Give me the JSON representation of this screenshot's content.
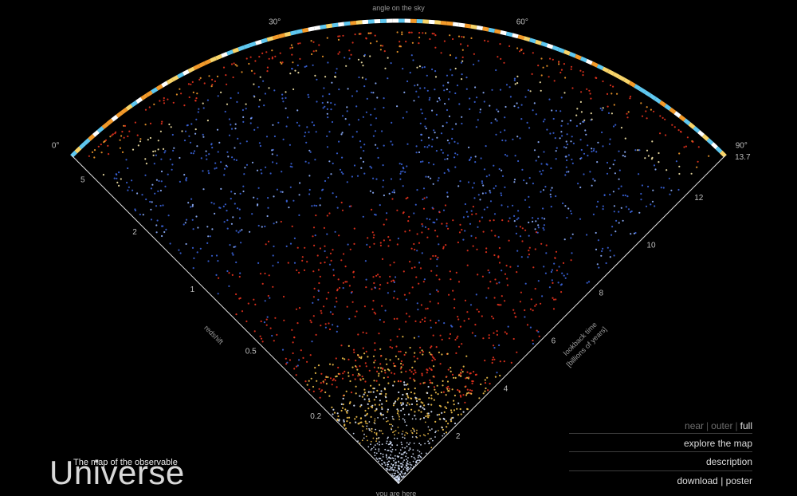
{
  "chart_data": {
    "type": "scatter",
    "title": "angle on the sky",
    "angle_ticks": [
      {
        "label": "0°",
        "value": 0
      },
      {
        "label": "30°",
        "value": 30
      },
      {
        "label": "60°",
        "value": 60
      },
      {
        "label": "90°",
        "value": 90
      }
    ],
    "redshift_axis": {
      "label": "redshift",
      "ticks": [
        {
          "label": "5",
          "value": 5
        },
        {
          "label": "2",
          "value": 2
        },
        {
          "label": "1",
          "value": 1
        },
        {
          "label": "0.5",
          "value": 0.5
        },
        {
          "label": "0.2",
          "value": 0.2
        }
      ]
    },
    "lookback_axis": {
      "label": "lookback time",
      "sublabel": "[billions of years]",
      "range": [
        0,
        13.7
      ],
      "ticks": [
        {
          "label": "2",
          "value": 2
        },
        {
          "label": "4",
          "value": 4
        },
        {
          "label": "6",
          "value": 6
        },
        {
          "label": "8",
          "value": 8
        },
        {
          "label": "10",
          "value": 10
        },
        {
          "label": "12",
          "value": 12
        },
        {
          "label": "13.7",
          "value": 13.7
        }
      ]
    },
    "origin_label": "you are here",
    "colors": {
      "nearby": "#d9e6ff",
      "galaxies_low_z": "#f2c14a",
      "galaxies_mid_z": "#e8331e",
      "quasars": "#3a63d9",
      "cmb_warm": "#f39a2a",
      "cmb_cold": "#5fc8f0"
    }
  },
  "title": {
    "small": "The map of the observable",
    "big": "Universe"
  },
  "menu": {
    "views": [
      {
        "label": "near",
        "active": false
      },
      {
        "label": "outer",
        "active": false
      },
      {
        "label": "full",
        "active": true
      }
    ],
    "links": [
      "explore the map",
      "description",
      "download | poster"
    ]
  }
}
